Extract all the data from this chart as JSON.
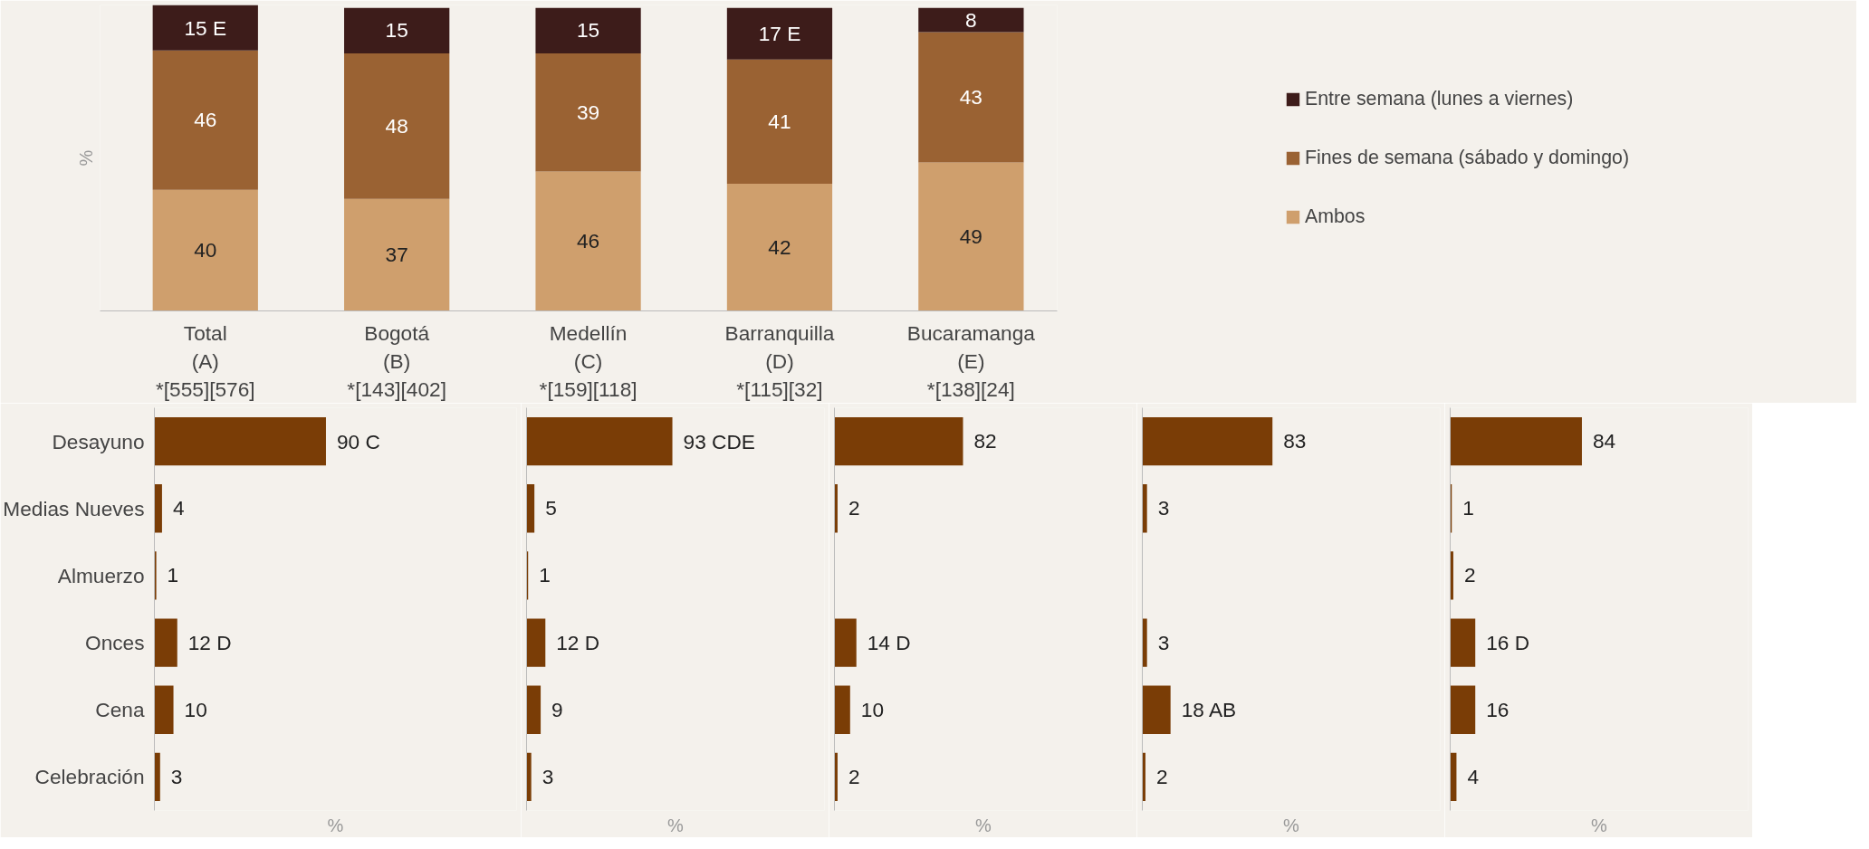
{
  "chart_data": [
    {
      "type": "bar",
      "stacked": true,
      "categories": [
        "Total\n(A)\n*[555][576]",
        "Bogotá\n(B)\n*[143][402]",
        "Medellín\n(C)\n*[159][118]",
        "Barranquilla\n(D)\n*[115][32]",
        "Bucaramanga\n(E)\n*[138][24]"
      ],
      "ylabel": "%",
      "ylim": [
        0,
        101
      ],
      "tick_labels": "x",
      "legend": "right",
      "series": [
        {
          "name": "Ambos",
          "color": "#cf9f6d",
          "values": [
            40,
            37,
            46,
            42,
            49
          ],
          "value_labels": [
            "40",
            "37",
            "46",
            "42",
            "49"
          ]
        },
        {
          "name": "Fines de semana (sábado y domingo)",
          "color": "#9a6233",
          "values": [
            46,
            48,
            39,
            41,
            43
          ],
          "value_labels": [
            "46",
            "48",
            "39",
            "41",
            "43"
          ]
        },
        {
          "name": "Entre semana (lunes a viernes)",
          "color": "#3d1c1a",
          "values": [
            15,
            15,
            15,
            17,
            8
          ],
          "value_labels": [
            "15 E",
            "15",
            "15",
            "17 E",
            "8"
          ]
        }
      ]
    },
    {
      "type": "bar",
      "orientation": "horizontal",
      "categories": [
        "Desayuno",
        "Medias Nueves",
        "Almuerzo",
        "Onces",
        "Cena",
        "Celebración"
      ],
      "values": [
        90,
        4,
        1,
        12,
        10,
        3
      ],
      "value_labels": [
        "90 C",
        "4",
        "1",
        "12 D",
        "10",
        "3"
      ],
      "color": "#7a3d06",
      "xlabel": "%",
      "xlim": [
        0,
        190
      ],
      "tick_labels": "y"
    },
    {
      "type": "bar",
      "orientation": "horizontal",
      "categories": [
        null,
        null,
        null,
        null,
        null,
        null
      ],
      "values": [
        93,
        5,
        1,
        12,
        9,
        3
      ],
      "value_labels": [
        "93 CDE",
        "5",
        "1",
        "12 D",
        "9",
        "3"
      ],
      "color": "#7a3d06",
      "xlabel": "%",
      "xlim": [
        0,
        190
      ],
      "tick_labels": false
    },
    {
      "type": "bar",
      "orientation": "horizontal",
      "categories": [
        null,
        null,
        null,
        null,
        null,
        null
      ],
      "values": [
        82,
        2,
        null,
        14,
        10,
        2
      ],
      "value_labels": [
        "82",
        "2",
        null,
        "14 D",
        "10",
        "2"
      ],
      "color": "#7a3d06",
      "xlabel": "%",
      "xlim": [
        0,
        190
      ],
      "tick_labels": false
    },
    {
      "type": "bar",
      "orientation": "horizontal",
      "categories": [
        null,
        null,
        null,
        null,
        null,
        null
      ],
      "values": [
        83,
        3,
        null,
        3,
        18,
        2
      ],
      "value_labels": [
        "83",
        "3",
        null,
        "3",
        "18 AB",
        "2"
      ],
      "color": "#7a3d06",
      "xlabel": "%",
      "xlim": [
        0,
        190
      ],
      "tick_labels": false
    },
    {
      "type": "bar",
      "orientation": "horizontal",
      "categories": [
        null,
        null,
        null,
        null,
        null,
        null
      ],
      "values": [
        84,
        1,
        2,
        16,
        16,
        4
      ],
      "value_labels": [
        "84",
        "1",
        "2",
        "16 D",
        "16",
        "4"
      ],
      "color": "#7a3d06",
      "xlabel": "%",
      "xlim": [
        0,
        190
      ],
      "tick_labels": false
    }
  ]
}
